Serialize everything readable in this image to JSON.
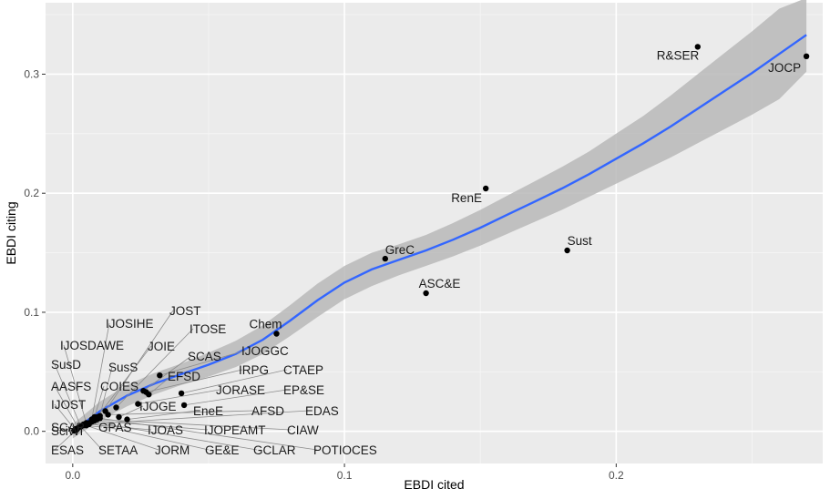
{
  "chart_data": {
    "type": "scatter",
    "xlabel": "EBDI cited",
    "ylabel": "EBDI citing",
    "xlim": [
      -0.01,
      0.276
    ],
    "ylim": [
      -0.027,
      0.36
    ],
    "x_ticks": [
      0.0,
      0.1,
      0.2
    ],
    "x_tick_labels": [
      "0.0",
      "0.1",
      "0.2"
    ],
    "y_ticks": [
      0.0,
      0.1,
      0.2,
      0.3
    ],
    "y_tick_labels": [
      "0.0",
      "0.1",
      "0.2",
      "0.3"
    ],
    "grid": true,
    "colors": {
      "panel": "#ebebeb",
      "grid_major": "#ffffff",
      "point": "#000000",
      "fit_line": "#3366ff",
      "band": "#b8b8b8",
      "leader": "#8c8c8c"
    },
    "points": [
      {
        "label": "JOCP",
        "x": 0.27,
        "y": 0.315
      },
      {
        "label": "R&SER",
        "x": 0.23,
        "y": 0.323
      },
      {
        "label": "RenE",
        "x": 0.152,
        "y": 0.204
      },
      {
        "label": "Sust",
        "x": 0.182,
        "y": 0.152
      },
      {
        "label": "GreC",
        "x": 0.115,
        "y": 0.145
      },
      {
        "label": "ASC&E",
        "x": 0.13,
        "y": 0.116
      },
      {
        "label": "Chem",
        "x": 0.075,
        "y": 0.082
      },
      {
        "label": "JOST",
        "x": 0.012,
        "y": 0.017
      },
      {
        "label": "ITOSE",
        "x": 0.016,
        "y": 0.02
      },
      {
        "label": "IJOSIHE",
        "x": 0.007,
        "y": 0.01
      },
      {
        "label": "JOIE",
        "x": 0.009,
        "y": 0.012
      },
      {
        "label": "IJOGGC",
        "x": 0.032,
        "y": 0.047
      },
      {
        "label": "IJOSDAWE",
        "x": 0.005,
        "y": 0.007
      },
      {
        "label": "SCAS",
        "x": 0.026,
        "y": 0.034
      },
      {
        "label": "SusS",
        "x": 0.01,
        "y": 0.013
      },
      {
        "label": "SusD",
        "x": 0.003,
        "y": 0.004
      },
      {
        "label": "EFSD",
        "x": 0.028,
        "y": 0.031
      },
      {
        "label": "IRPG",
        "x": 0.027,
        "y": 0.033
      },
      {
        "label": "CTAEP",
        "x": 0.04,
        "y": 0.032
      },
      {
        "label": "AASFS",
        "x": 0.002,
        "y": 0.003
      },
      {
        "label": "COIES",
        "x": 0.008,
        "y": 0.012
      },
      {
        "label": "JORASE",
        "x": 0.024,
        "y": 0.023
      },
      {
        "label": "EP&SE",
        "x": 0.041,
        "y": 0.022
      },
      {
        "label": "IJOST",
        "x": 0.001,
        "y": 0.001
      },
      {
        "label": "IJOGE",
        "x": 0.017,
        "y": 0.012
      },
      {
        "label": "EneE",
        "x": 0.02,
        "y": 0.01
      },
      {
        "label": "AFSD",
        "x": 0.013,
        "y": 0.014
      },
      {
        "label": "EDAS",
        "x": 0.004,
        "y": 0.006
      },
      {
        "label": "SCAP",
        "x": 0.0005,
        "y": 0.0005
      },
      {
        "label": "SciWI",
        "x": 0.001,
        "y": 0.002
      },
      {
        "label": "GPAS",
        "x": 0.004,
        "y": 0.005
      },
      {
        "label": "IJOAS",
        "x": 0.006,
        "y": 0.006
      },
      {
        "label": "IJOPEAMT",
        "x": 0.008,
        "y": 0.009
      },
      {
        "label": "CIAW",
        "x": 0.009,
        "y": 0.01
      },
      {
        "label": "ESAS",
        "x": 0.0015,
        "y": 0.0015
      },
      {
        "label": "SETAA",
        "x": 0.003,
        "y": 0.004
      },
      {
        "label": "JORM",
        "x": 0.005,
        "y": 0.005
      },
      {
        "label": "GE&E",
        "x": 0.006,
        "y": 0.007
      },
      {
        "label": "GCLAR",
        "x": 0.007,
        "y": 0.008
      },
      {
        "label": "POTIOCES",
        "x": 0.01,
        "y": 0.011
      }
    ],
    "smooth": {
      "x": [
        0.0,
        0.01,
        0.02,
        0.03,
        0.04,
        0.05,
        0.06,
        0.07,
        0.08,
        0.09,
        0.1,
        0.11,
        0.12,
        0.13,
        0.14,
        0.15,
        0.16,
        0.17,
        0.18,
        0.19,
        0.2,
        0.21,
        0.22,
        0.23,
        0.24,
        0.25,
        0.26,
        0.27
      ],
      "y": [
        0.0,
        0.017,
        0.03,
        0.04,
        0.048,
        0.056,
        0.065,
        0.077,
        0.093,
        0.11,
        0.125,
        0.136,
        0.144,
        0.152,
        0.161,
        0.171,
        0.182,
        0.193,
        0.204,
        0.216,
        0.229,
        0.242,
        0.256,
        0.271,
        0.286,
        0.301,
        0.317,
        0.333
      ],
      "lower": [
        -0.006,
        0.009,
        0.021,
        0.031,
        0.039,
        0.046,
        0.054,
        0.065,
        0.08,
        0.096,
        0.111,
        0.122,
        0.131,
        0.139,
        0.147,
        0.156,
        0.166,
        0.176,
        0.186,
        0.197,
        0.208,
        0.219,
        0.23,
        0.242,
        0.254,
        0.266,
        0.279,
        0.302
      ],
      "upper": [
        0.006,
        0.025,
        0.039,
        0.049,
        0.057,
        0.066,
        0.076,
        0.089,
        0.106,
        0.124,
        0.139,
        0.15,
        0.157,
        0.165,
        0.175,
        0.186,
        0.198,
        0.21,
        0.222,
        0.235,
        0.25,
        0.265,
        0.282,
        0.3,
        0.318,
        0.336,
        0.355,
        0.364
      ]
    }
  }
}
